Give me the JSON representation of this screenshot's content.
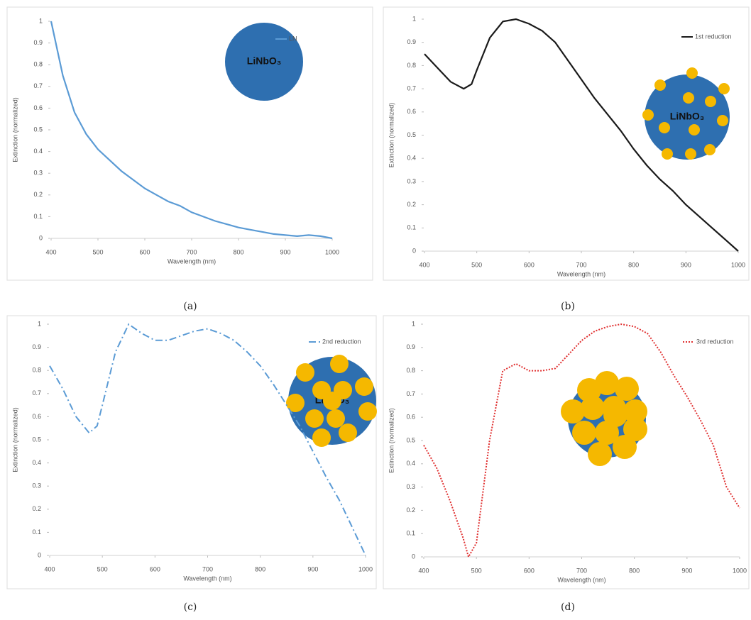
{
  "chart_data": [
    {
      "type": "line",
      "caption": "(a)",
      "xlabel": "Wavelength (nm)",
      "ylabel": "Extinction (normalized)",
      "inset_label": "LiNbO₃",
      "xlim": [
        400,
        1000
      ],
      "ylim": [
        0,
        1
      ],
      "xticks": [
        400,
        500,
        600,
        700,
        800,
        900,
        1000
      ],
      "yticks": [
        0,
        0.1,
        0.2,
        0.3,
        0.4,
        0.5,
        0.6,
        0.7,
        0.8,
        0.9,
        1
      ],
      "legend": "upper right",
      "line_style": "solid",
      "x": [
        400,
        425,
        450,
        475,
        500,
        525,
        550,
        575,
        600,
        625,
        650,
        675,
        700,
        725,
        750,
        775,
        800,
        825,
        850,
        875,
        900,
        925,
        950,
        975,
        1000
      ],
      "series": [
        {
          "name": "LN",
          "color": "#5b9bd5",
          "values": [
            1.0,
            0.75,
            0.58,
            0.48,
            0.41,
            0.36,
            0.31,
            0.27,
            0.23,
            0.2,
            0.17,
            0.15,
            0.12,
            0.1,
            0.08,
            0.065,
            0.05,
            0.04,
            0.03,
            0.02,
            0.015,
            0.01,
            0.015,
            0.01,
            0
          ]
        }
      ]
    },
    {
      "type": "line",
      "caption": "(b)",
      "xlabel": "Wavelength (nm)",
      "ylabel": "Extinction (normalized)",
      "inset_label": "LiNbO₃",
      "xlim": [
        400,
        1000
      ],
      "ylim": [
        0,
        1
      ],
      "xticks": [
        400,
        500,
        600,
        700,
        800,
        900,
        1000
      ],
      "yticks": [
        0,
        0.1,
        0.2,
        0.3,
        0.4,
        0.5,
        0.6,
        0.7,
        0.8,
        0.9,
        1
      ],
      "legend": "upper right",
      "line_style": "solid",
      "x": [
        400,
        425,
        450,
        475,
        490,
        500,
        525,
        550,
        575,
        600,
        625,
        650,
        675,
        700,
        725,
        750,
        775,
        800,
        825,
        850,
        875,
        900,
        925,
        950,
        975,
        1000
      ],
      "series": [
        {
          "name": "1st reduction",
          "color": "#1a1a1a",
          "values": [
            0.85,
            0.79,
            0.73,
            0.7,
            0.72,
            0.78,
            0.92,
            0.99,
            1.0,
            0.98,
            0.95,
            0.9,
            0.82,
            0.74,
            0.66,
            0.59,
            0.52,
            0.44,
            0.37,
            0.31,
            0.26,
            0.2,
            0.15,
            0.1,
            0.05,
            0
          ]
        }
      ]
    },
    {
      "type": "line",
      "caption": "(c)",
      "xlabel": "Wavelength (nm)",
      "ylabel": "Extinction (normalized)",
      "inset_label": "LiNbO₃",
      "xlim": [
        400,
        1000
      ],
      "ylim": [
        0,
        1
      ],
      "xticks": [
        400,
        500,
        600,
        700,
        800,
        900,
        1000
      ],
      "yticks": [
        0,
        0.1,
        0.2,
        0.3,
        0.4,
        0.5,
        0.6,
        0.7,
        0.8,
        0.9,
        1
      ],
      "legend": "upper right",
      "line_style": "dashdot",
      "x": [
        400,
        425,
        450,
        475,
        490,
        500,
        525,
        550,
        575,
        600,
        625,
        650,
        675,
        700,
        725,
        750,
        775,
        800,
        825,
        850,
        875,
        900,
        925,
        950,
        975,
        1000
      ],
      "series": [
        {
          "name": "2nd reduction",
          "color": "#5b9bd5",
          "values": [
            0.82,
            0.72,
            0.6,
            0.53,
            0.56,
            0.65,
            0.88,
            1.0,
            0.96,
            0.93,
            0.93,
            0.95,
            0.97,
            0.98,
            0.96,
            0.93,
            0.88,
            0.82,
            0.74,
            0.65,
            0.56,
            0.45,
            0.34,
            0.24,
            0.12,
            0
          ]
        }
      ]
    },
    {
      "type": "line",
      "caption": "(d)",
      "xlabel": "Wavelength (nm)",
      "ylabel": "Extinction (normalized)",
      "xlim": [
        400,
        1000
      ],
      "ylim": [
        0,
        1
      ],
      "xticks": [
        400,
        500,
        600,
        700,
        800,
        900,
        1000
      ],
      "yticks": [
        0,
        0.1,
        0.2,
        0.3,
        0.4,
        0.5,
        0.6,
        0.7,
        0.8,
        0.9,
        1
      ],
      "legend": "upper right",
      "line_style": "dotted",
      "x": [
        400,
        425,
        450,
        475,
        485,
        500,
        525,
        550,
        575,
        600,
        625,
        650,
        675,
        700,
        725,
        750,
        775,
        800,
        825,
        850,
        875,
        900,
        925,
        950,
        975,
        1000
      ],
      "series": [
        {
          "name": "3rd reduction",
          "color": "#e03030",
          "values": [
            0.48,
            0.38,
            0.24,
            0.08,
            0,
            0.06,
            0.5,
            0.8,
            0.83,
            0.8,
            0.8,
            0.81,
            0.87,
            0.93,
            0.97,
            0.99,
            1.0,
            0.99,
            0.96,
            0.88,
            0.78,
            0.69,
            0.59,
            0.48,
            0.3,
            0.21
          ]
        }
      ]
    }
  ]
}
